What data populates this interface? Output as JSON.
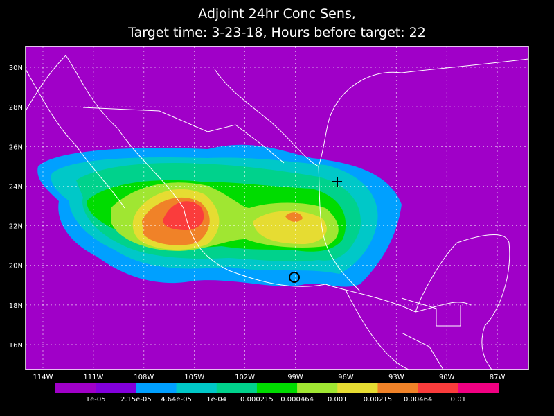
{
  "title": [
    "Adjoint 24hr Conc Sens,",
    "Target time: 3-23-18, Hours before target: 22"
  ],
  "lat_labels": [
    "30N",
    "28N",
    "26N",
    "24N",
    "22N",
    "20N",
    "18N",
    "16N"
  ],
  "lon_labels": [
    "114W",
    "111W",
    "108W",
    "105W",
    "102W",
    "99W",
    "96W",
    "93W",
    "90W",
    "87W"
  ],
  "colorbar": {
    "colors": [
      "#a000c8",
      "#8200dc",
      "#00a0ff",
      "#00c8c8",
      "#00d28c",
      "#00dc00",
      "#a0e632",
      "#e6dc32",
      "#f08228",
      "#fa3c3c",
      "#f00082"
    ],
    "labels": [
      "1e-05",
      "2.15e-05",
      "4.64e-05",
      "1e-04",
      "0.000215",
      "0.000464",
      "0.001",
      "0.00215",
      "0.00464",
      "0.01"
    ]
  }
}
